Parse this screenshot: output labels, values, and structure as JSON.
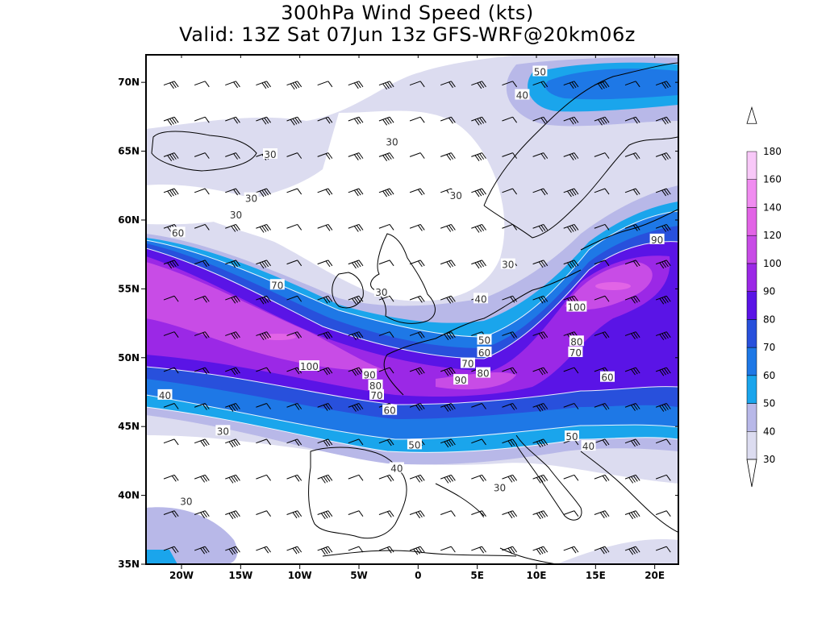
{
  "title_line1": "300hPa Wind Speed (kts)",
  "title_line2": "Valid: 13Z Sat 07Jun 13z GFS-WRF@20km06z",
  "map": {
    "lon_range": [
      -23,
      22
    ],
    "lat_range": [
      35,
      72
    ],
    "lon_ticks": [
      {
        "value": -20,
        "label": "20W"
      },
      {
        "value": -15,
        "label": "15W"
      },
      {
        "value": -10,
        "label": "10W"
      },
      {
        "value": -5,
        "label": "5W"
      },
      {
        "value": 0,
        "label": "0"
      },
      {
        "value": 5,
        "label": "5E"
      },
      {
        "value": 10,
        "label": "10E"
      },
      {
        "value": 15,
        "label": "15E"
      },
      {
        "value": 20,
        "label": "20E"
      }
    ],
    "lat_ticks": [
      {
        "value": 35,
        "label": "35N"
      },
      {
        "value": 40,
        "label": "40N"
      },
      {
        "value": 45,
        "label": "45N"
      },
      {
        "value": 50,
        "label": "50N"
      },
      {
        "value": 55,
        "label": "55N"
      },
      {
        "value": 60,
        "label": "60N"
      },
      {
        "value": 65,
        "label": "65N"
      },
      {
        "value": 70,
        "label": "70N"
      }
    ]
  },
  "colorbar": {
    "levels": [
      "30",
      "40",
      "50",
      "60",
      "70",
      "80",
      "90",
      "100",
      "120",
      "140",
      "160",
      "180"
    ],
    "colors": [
      "#dcdcf0",
      "#b8b8e8",
      "#1aa5ec",
      "#1e78e6",
      "#2850dc",
      "#5a14e6",
      "#9b28e6",
      "#c84ce6",
      "#e264e6",
      "#f08cf0",
      "#f8c8f8"
    ]
  },
  "contour_labels": [
    {
      "lon": 10.3,
      "lat": 70.8,
      "text": "50"
    },
    {
      "lon": 8.8,
      "lat": 69.1,
      "text": "40"
    },
    {
      "lon": -2.2,
      "lat": 65.7,
      "text": "30"
    },
    {
      "lon": -12.5,
      "lat": 64.8,
      "text": "30"
    },
    {
      "lon": -14.1,
      "lat": 61.6,
      "text": "30"
    },
    {
      "lon": -15.4,
      "lat": 60.4,
      "text": "30"
    },
    {
      "lon": 3.2,
      "lat": 61.8,
      "text": "30"
    },
    {
      "lon": 7.6,
      "lat": 56.8,
      "text": "30"
    },
    {
      "lon": -3.1,
      "lat": 54.8,
      "text": "30"
    },
    {
      "lon": -20.3,
      "lat": 59.1,
      "text": "60"
    },
    {
      "lon": 20.2,
      "lat": 58.6,
      "text": "90"
    },
    {
      "lon": -11.9,
      "lat": 55.3,
      "text": "70"
    },
    {
      "lon": 5.3,
      "lat": 54.3,
      "text": "40"
    },
    {
      "lon": 13.4,
      "lat": 53.7,
      "text": "100"
    },
    {
      "lon": 5.6,
      "lat": 51.3,
      "text": "50"
    },
    {
      "lon": 5.6,
      "lat": 50.4,
      "text": "60"
    },
    {
      "lon": 13.4,
      "lat": 51.2,
      "text": "80"
    },
    {
      "lon": 13.3,
      "lat": 50.4,
      "text": "70"
    },
    {
      "lon": 4.2,
      "lat": 49.6,
      "text": "70"
    },
    {
      "lon": 5.5,
      "lat": 48.9,
      "text": "80"
    },
    {
      "lon": -9.2,
      "lat": 49.4,
      "text": "100"
    },
    {
      "lon": -4.1,
      "lat": 48.8,
      "text": "90"
    },
    {
      "lon": -3.6,
      "lat": 48.0,
      "text": "80"
    },
    {
      "lon": -3.5,
      "lat": 47.3,
      "text": "70"
    },
    {
      "lon": 3.6,
      "lat": 48.4,
      "text": "90"
    },
    {
      "lon": 16.0,
      "lat": 48.6,
      "text": "60"
    },
    {
      "lon": -2.4,
      "lat": 46.2,
      "text": "60"
    },
    {
      "lon": -21.4,
      "lat": 47.3,
      "text": "40"
    },
    {
      "lon": -16.5,
      "lat": 44.7,
      "text": "30"
    },
    {
      "lon": -0.3,
      "lat": 43.7,
      "text": "50"
    },
    {
      "lon": 13.0,
      "lat": 44.3,
      "text": "50"
    },
    {
      "lon": 14.4,
      "lat": 43.6,
      "text": "40"
    },
    {
      "lon": -1.8,
      "lat": 42.0,
      "text": "40"
    },
    {
      "lon": 6.9,
      "lat": 40.6,
      "text": "30"
    },
    {
      "lon": -19.6,
      "lat": 39.6,
      "text": "30"
    }
  ]
}
